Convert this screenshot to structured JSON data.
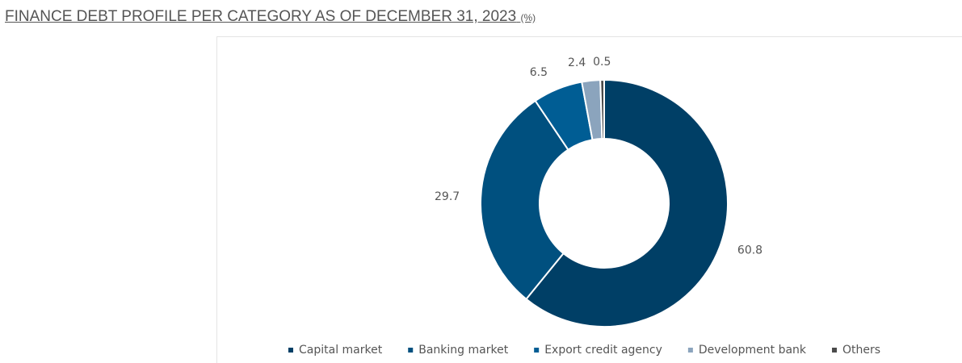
{
  "chart_data": {
    "type": "donut",
    "title": "FINANCE DEBT PROFILE PER CATEGORY AS OF DECEMBER 31, 2023",
    "unit": "(%)",
    "categories": [
      "Capital market",
      "Banking market",
      "Export credit agency",
      "Development bank",
      "Others"
    ],
    "values": [
      60.8,
      29.7,
      6.5,
      2.4,
      0.5
    ],
    "colors": [
      "#003f66",
      "#00507f",
      "#005d94",
      "#8ba4bd",
      "#4a4a4a"
    ],
    "legend": "bottom"
  }
}
